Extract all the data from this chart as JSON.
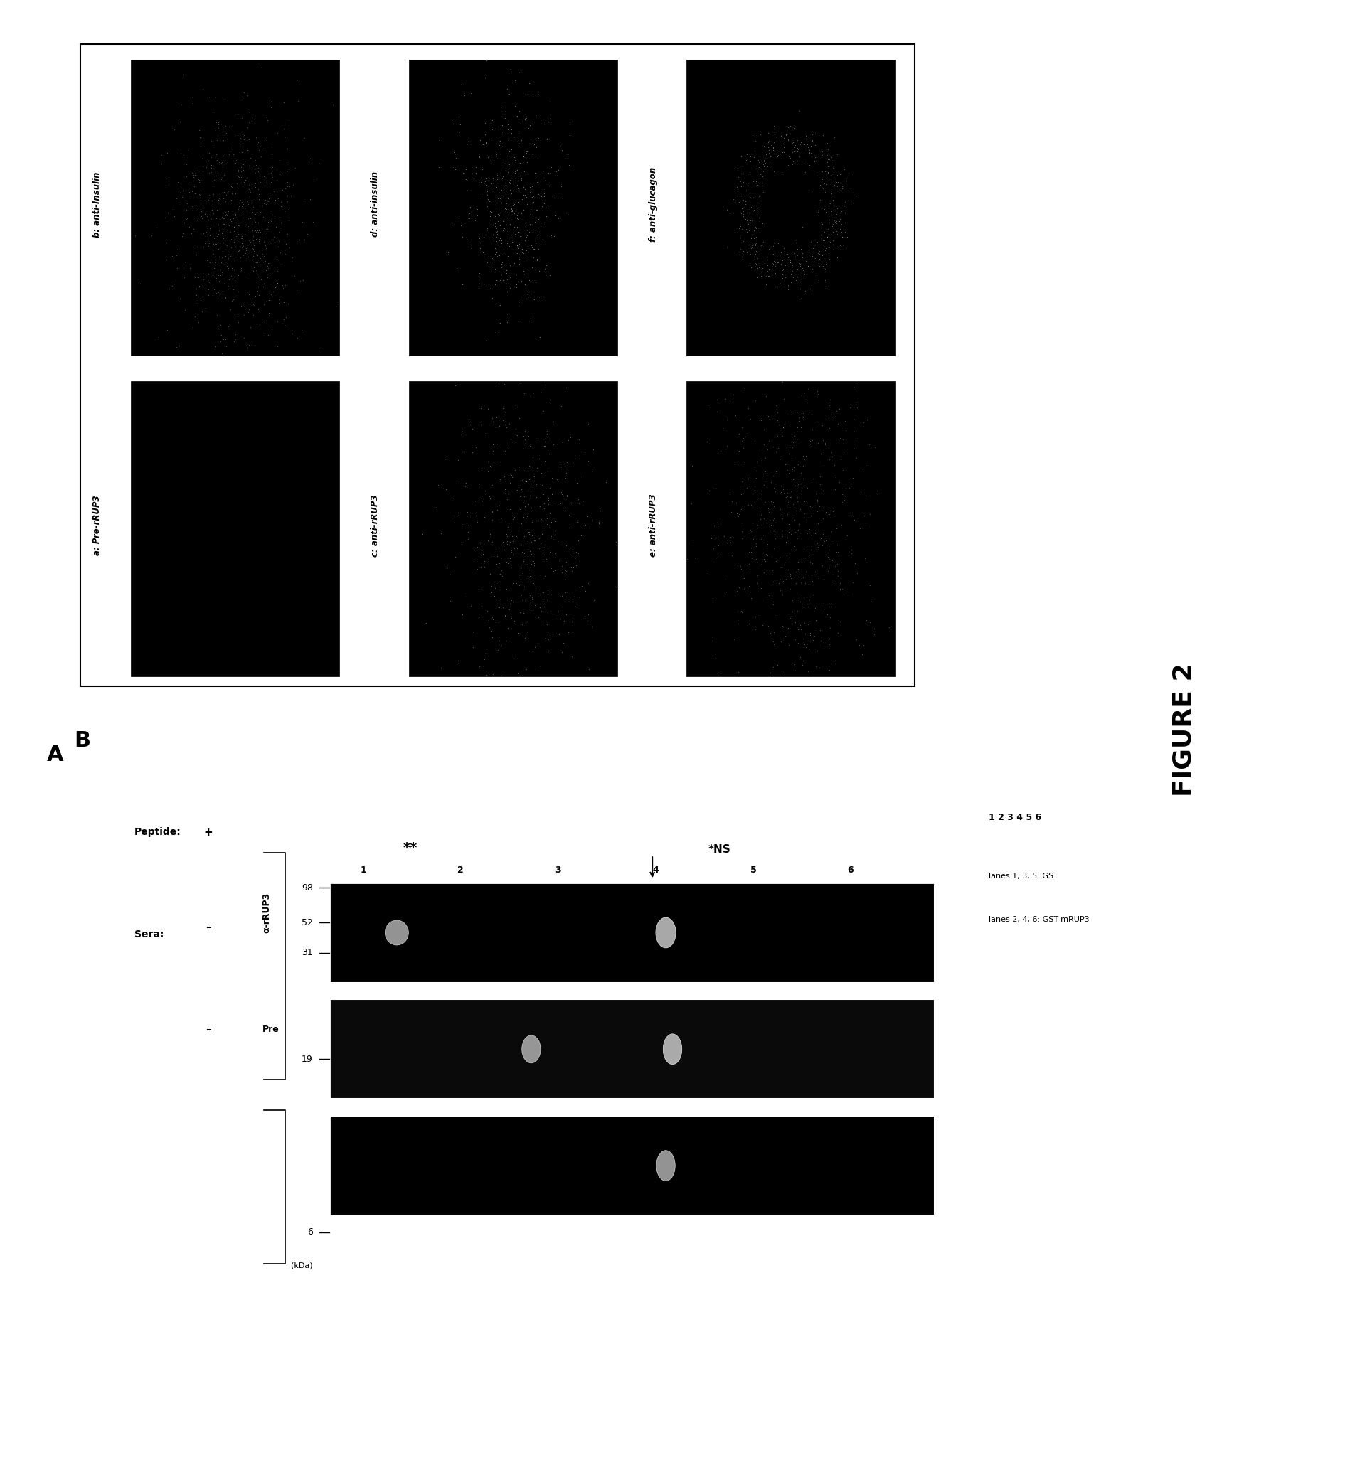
{
  "figure_title": "FIGURE 2",
  "panel_A_label": "A",
  "panel_B_label": "B",
  "peptide_label": "Peptide:",
  "sera_label": "Sera:",
  "peptide_plus": "+",
  "peptide_minus1": "–",
  "peptide_minus2": "–",
  "sera_labels": [
    "Pre",
    "α-rRUP3"
  ],
  "annotation_stars": "**",
  "annotation_arrow_label": "",
  "annotation_ns": "*NS",
  "lane_numbers": "1 2 3 4 5 6",
  "lanes_135": "lanes 1, 3, 5: GST",
  "lanes_246": "lanes 2, 4, 6: GST-mRUP3",
  "mw_labels": [
    "98",
    "52",
    "31",
    "19",
    "6"
  ],
  "mw_unit": "(kDa)",
  "bg_color": "#ffffff",
  "gel_bg": "#000000",
  "gel_border": "#000000",
  "panel_box_color": "#000000",
  "panel_labels_top": [
    "b: anti-Insulin",
    "d: anti-insulin",
    "f: anti-glucagon"
  ],
  "panel_labels_bottom": [
    "a: Pre-rRUP3",
    "c: anti-rRUP3",
    "e: anti-rRUP3"
  ]
}
